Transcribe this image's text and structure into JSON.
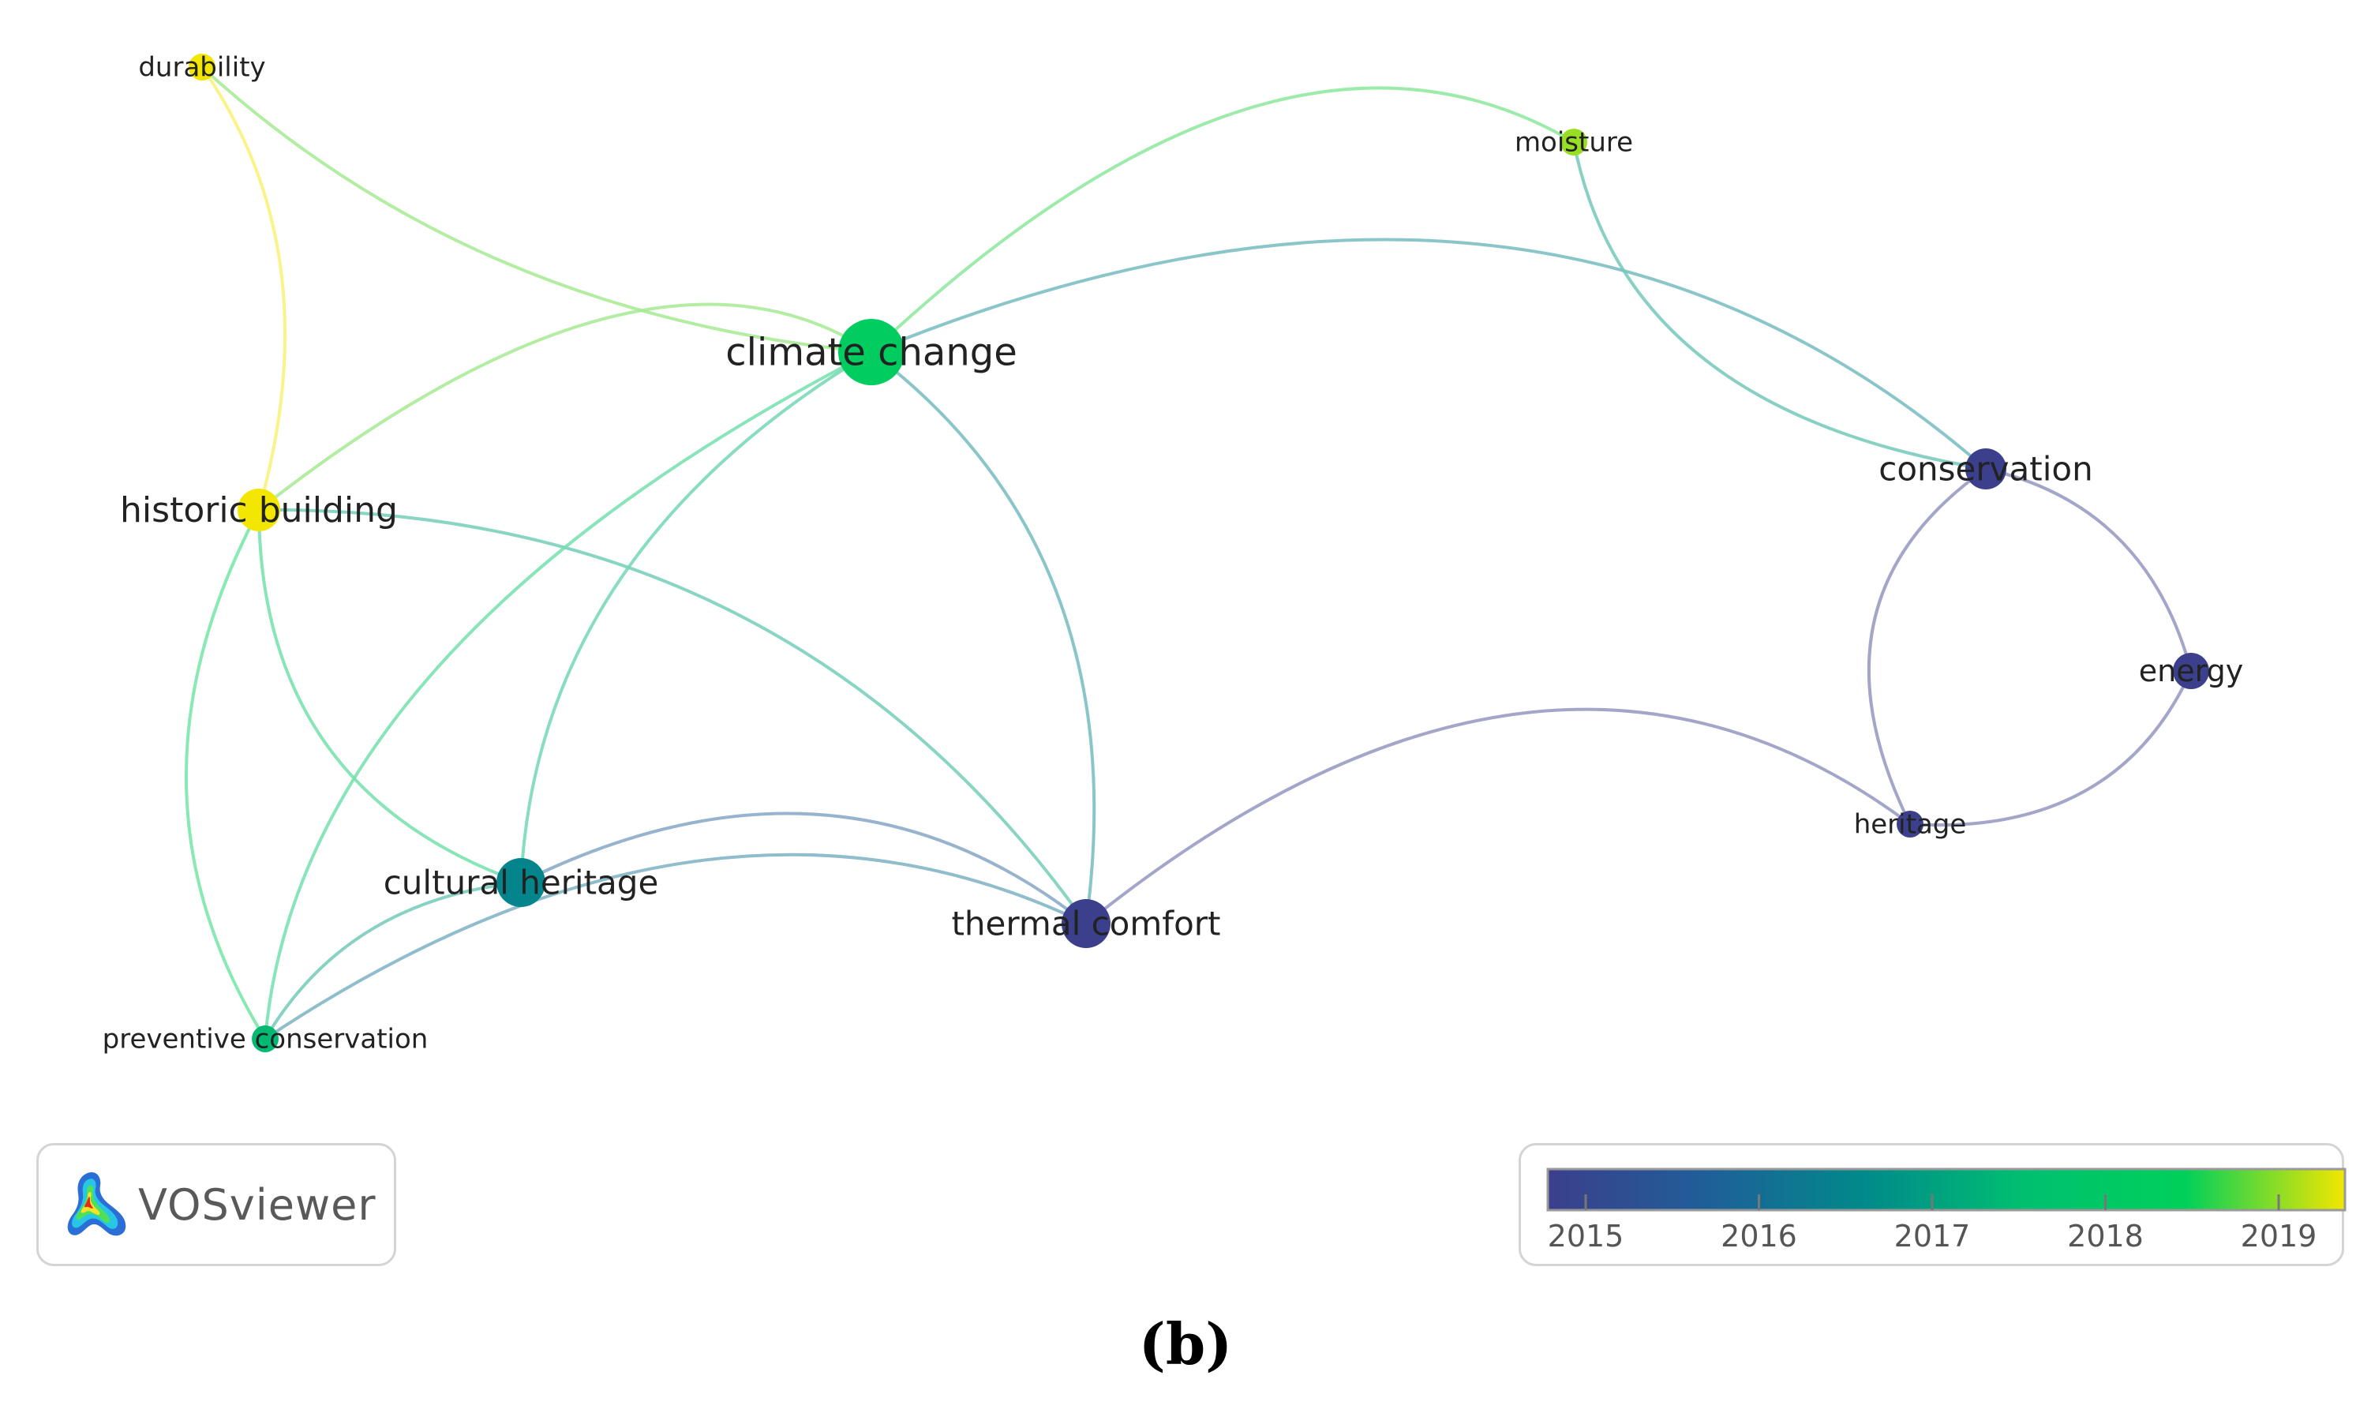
{
  "network": {
    "nodes": [
      {
        "id": "durability",
        "label": "durability",
        "year": 2019.0
      },
      {
        "id": "moisture",
        "label": "moisture",
        "year": 2018.7
      },
      {
        "id": "climate-change",
        "label": "climate change",
        "year": 2018.0
      },
      {
        "id": "historic-building",
        "label": "historic building",
        "year": 2019.0
      },
      {
        "id": "conservation",
        "label": "conservation",
        "year": 2015.0
      },
      {
        "id": "energy",
        "label": "energy",
        "year": 2015.0
      },
      {
        "id": "heritage",
        "label": "heritage",
        "year": 2015.0
      },
      {
        "id": "cultural-heritage",
        "label": "cultural heritage",
        "year": 2016.5
      },
      {
        "id": "thermal-comfort",
        "label": "thermal comfort",
        "year": 2015.0
      },
      {
        "id": "preventive-conservation",
        "label": "preventive conservation",
        "year": 2017.3
      }
    ],
    "links": [
      {
        "source": "durability",
        "target": "climate-change"
      },
      {
        "source": "durability",
        "target": "historic-building"
      },
      {
        "source": "historic-building",
        "target": "climate-change"
      },
      {
        "source": "historic-building",
        "target": "thermal-comfort"
      },
      {
        "source": "historic-building",
        "target": "cultural-heritage"
      },
      {
        "source": "historic-building",
        "target": "preventive-conservation"
      },
      {
        "source": "climate-change",
        "target": "moisture"
      },
      {
        "source": "climate-change",
        "target": "conservation"
      },
      {
        "source": "climate-change",
        "target": "cultural-heritage"
      },
      {
        "source": "climate-change",
        "target": "thermal-comfort"
      },
      {
        "source": "climate-change",
        "target": "preventive-conservation"
      },
      {
        "source": "moisture",
        "target": "conservation"
      },
      {
        "source": "conservation",
        "target": "energy"
      },
      {
        "source": "conservation",
        "target": "heritage"
      },
      {
        "source": "energy",
        "target": "heritage"
      },
      {
        "source": "heritage",
        "target": "thermal-comfort"
      },
      {
        "source": "cultural-heritage",
        "target": "thermal-comfort"
      },
      {
        "source": "cultural-heritage",
        "target": "preventive-conservation"
      },
      {
        "source": "preventive-conservation",
        "target": "thermal-comfort"
      }
    ]
  },
  "logo": {
    "text": "VOSviewer"
  },
  "legend": {
    "ticks": [
      {
        "label": "2015",
        "value": 2015
      },
      {
        "label": "2016",
        "value": 2016
      },
      {
        "label": "2017",
        "value": 2017
      },
      {
        "label": "2018",
        "value": 2018
      },
      {
        "label": "2019",
        "value": 2019
      }
    ],
    "colors": [
      "#3b3f8c",
      "#1f5f99",
      "#008a8a",
      "#00c070",
      "#00d05a",
      "#f3e600"
    ]
  },
  "caption": {
    "text": "(b)"
  }
}
